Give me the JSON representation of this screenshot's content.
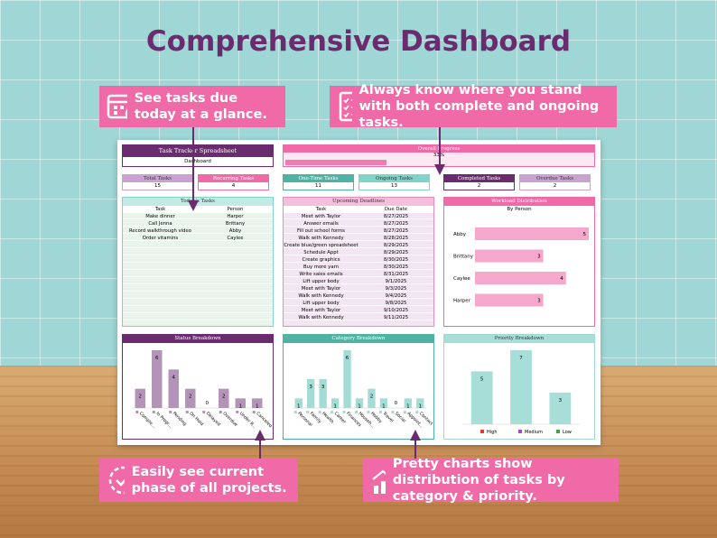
{
  "header": {
    "title": "Comprehensive Dashboard"
  },
  "callouts": [
    "See tasks due today at a glance.",
    "Always know where you stand with both complete and ongoing tasks.",
    "Easily see current phase of all projects.",
    "Pretty charts show distribution of tasks by category & priority."
  ],
  "dashboard": {
    "title": "Task Tracker Spreadsheet",
    "subtitle": "Dashboard",
    "progress": {
      "label": "Overall Progress",
      "value": 33,
      "value_label": "33%"
    },
    "stats": [
      {
        "label": "Total Tasks",
        "value": 15
      },
      {
        "label": "Recurring Tasks",
        "value": 4
      },
      {
        "label": "One-Time Tasks",
        "value": 11
      },
      {
        "label": "Ongoing Tasks",
        "value": 13
      },
      {
        "label": "Completed Tasks",
        "value": 2
      },
      {
        "label": "Overdue Tasks",
        "value": 2
      }
    ],
    "today": {
      "title": "Today's Tasks",
      "columns": [
        "Task",
        "Person"
      ],
      "rows": [
        [
          "Make dinner",
          "Harper"
        ],
        [
          "Call Jenna",
          "Brittany"
        ],
        [
          "Record walkthrough video",
          "Abby"
        ],
        [
          "Order vitamins",
          "Caylee"
        ]
      ]
    },
    "deadlines": {
      "title": "Upcoming Deadlines",
      "columns": [
        "Task",
        "Due Date"
      ],
      "rows": [
        [
          "Meet with Taylor",
          "8/27/2025"
        ],
        [
          "Answer emails",
          "8/27/2025"
        ],
        [
          "Fill out school forms",
          "8/27/2025"
        ],
        [
          "Walk with Kennedy",
          "8/28/2025"
        ],
        [
          "Create blue/green spreadsheet",
          "8/29/2025"
        ],
        [
          "Schedule Appt",
          "8/29/2025"
        ],
        [
          "Create graphics",
          "8/30/2025"
        ],
        [
          "Buy more yarn",
          "8/30/2025"
        ],
        [
          "Write sales emails",
          "8/31/2025"
        ],
        [
          "Lift upper body",
          "9/1/2025"
        ],
        [
          "Meet with Taylor",
          "9/3/2025"
        ],
        [
          "Walk with Kennedy",
          "9/4/2025"
        ],
        [
          "Lift upper body",
          "9/8/2025"
        ],
        [
          "Meet with Taylor",
          "9/10/2025"
        ],
        [
          "Walk with Kennedy",
          "9/11/2025"
        ]
      ]
    },
    "workload": {
      "type": "bar",
      "title": "Workload Distribution",
      "subtitle": "By Person",
      "categories": [
        "Abby",
        "Brittany",
        "Caylee",
        "Harper"
      ],
      "values": [
        5,
        3,
        4,
        3
      ],
      "color": "#f5a8cb"
    },
    "status": {
      "type": "bar",
      "title": "Status Breakdown",
      "categories": [
        "Comple...",
        "In Progr...",
        "Pending",
        "On Hold",
        "Delayed",
        "Overdue",
        "Under R...",
        "Canceled"
      ],
      "values": [
        2,
        6,
        4,
        2,
        0,
        2,
        1,
        1
      ],
      "color": "#b493b8"
    },
    "category": {
      "type": "bar",
      "title": "Category Breakdown",
      "categories": [
        "Personal",
        "Family",
        "Health",
        "Career",
        "Finances",
        "Househ...",
        "Hobby",
        "Travel",
        "Social",
        "Appoint...",
        "Contact"
      ],
      "values": [
        1,
        3,
        3,
        1,
        6,
        1,
        2,
        1,
        0,
        1,
        1
      ],
      "color": "#a3dcd5"
    },
    "priority": {
      "type": "bar",
      "title": "Priority Breakdown",
      "categories": [
        "High",
        "Medium",
        "Low"
      ],
      "values": [
        5,
        7,
        3
      ],
      "color": "#a8ded8",
      "legend_colors": [
        "#e53935",
        "#a24bd0",
        "#43a047"
      ]
    }
  }
}
